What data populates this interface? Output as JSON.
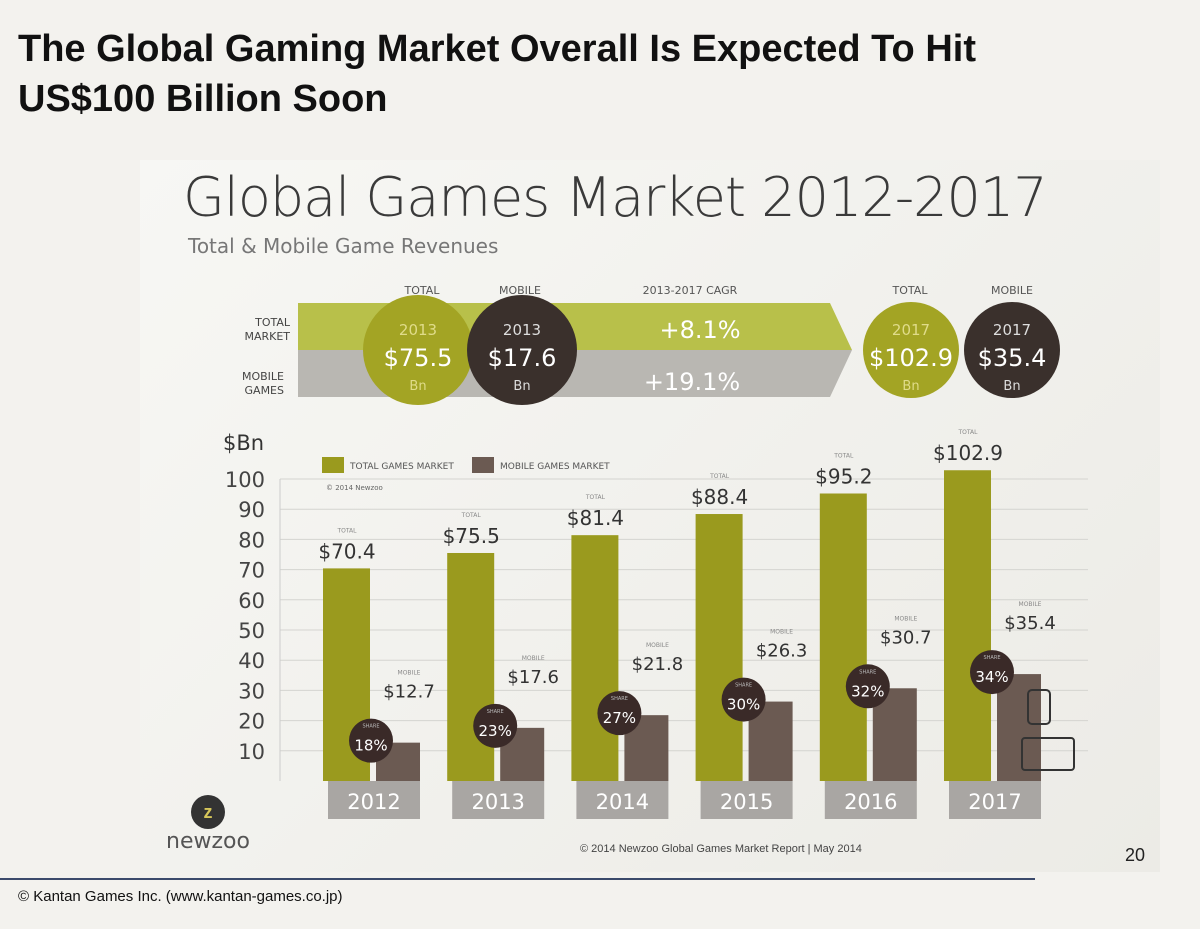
{
  "title_line1": "The Global Gaming Market Overall Is Expected To Hit",
  "title_line2": "US$100 Billion Soon",
  "slide_title": "Global Games Market 2012-2017",
  "slide_subtitle": "Total & Mobile Game Revenues",
  "banner": {
    "col_total": "TOTAL",
    "col_mobile": "MOBILE",
    "col_cagr": "2013-2017 CAGR",
    "row_total": [
      "TOTAL",
      "MARKET"
    ],
    "row_mobile": [
      "MOBILE",
      "GAMES"
    ],
    "start": {
      "year": "2013",
      "total": "$75.5",
      "mobile": "$17.6",
      "unit": "Bn"
    },
    "end": {
      "year": "2017",
      "total": "$102.9",
      "mobile": "$35.4",
      "unit": "Bn"
    },
    "cagr_total": "+8.1%",
    "cagr_mobile": "+19.1%"
  },
  "chart_data": {
    "type": "bar",
    "ylabel": "$Bn",
    "ylim": [
      0,
      100
    ],
    "yticks": [
      10,
      20,
      30,
      40,
      50,
      60,
      70,
      80,
      90,
      100
    ],
    "categories": [
      "2012",
      "2013",
      "2014",
      "2015",
      "2016",
      "2017"
    ],
    "series": [
      {
        "name": "TOTAL GAMES MARKET",
        "values": [
          70.4,
          75.5,
          81.4,
          88.4,
          95.2,
          102.9
        ],
        "labels": [
          "$70.4",
          "$75.5",
          "$81.4",
          "$88.4",
          "$95.2",
          "$102.9"
        ],
        "tag": "TOTAL",
        "color": "#9a9a1e"
      },
      {
        "name": "MOBILE GAMES MARKET",
        "values": [
          12.7,
          17.6,
          21.8,
          26.3,
          30.7,
          35.4
        ],
        "labels": [
          "$12.7",
          "$17.6",
          "$21.8",
          "$26.3",
          "$30.7",
          "$35.4"
        ],
        "tag": "MOBILE",
        "color": "#6b5a52"
      }
    ],
    "share": {
      "tag": "SHARE",
      "values": [
        "18%",
        "23%",
        "27%",
        "30%",
        "32%",
        "34%"
      ]
    },
    "chart_copyright": "© 2014 Newzoo",
    "legend_placement": "top-left"
  },
  "logo_text": "newzoo",
  "report_copyright": "© 2014 Newzoo Global Games Market Report | May 2014",
  "page_number": "20",
  "footer": "© Kantan Games Inc. (www.kantan-games.co.jp)"
}
